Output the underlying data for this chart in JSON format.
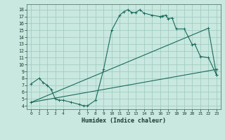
{
  "bg_color": "#c8e8e0",
  "grid_color": "#9dc8bc",
  "line_color": "#1a6b5a",
  "xlabel": "Humidex (Indice chaleur)",
  "xlim": [
    -0.5,
    23.5
  ],
  "ylim": [
    3.5,
    18.8
  ],
  "xticks": [
    0,
    1,
    2,
    3,
    4,
    6,
    7,
    8,
    9,
    10,
    11,
    12,
    13,
    14,
    15,
    16,
    17,
    18,
    19,
    20,
    21,
    22,
    23
  ],
  "yticks": [
    4,
    5,
    6,
    7,
    8,
    9,
    10,
    11,
    12,
    13,
    14,
    15,
    16,
    17,
    18
  ],
  "curve1_x": [
    0,
    1,
    1.5,
    2,
    2.5,
    3,
    3.5,
    4,
    5,
    6,
    6.5,
    7,
    8,
    9,
    10,
    11,
    11.5,
    12,
    12.5,
    13,
    13.5,
    14,
    15,
    16,
    16.3,
    16.7,
    17,
    17.5,
    18,
    19,
    20,
    20.3,
    21,
    22,
    23
  ],
  "curve1_y": [
    7.2,
    8.0,
    7.4,
    7.0,
    6.4,
    5.0,
    4.8,
    4.8,
    4.5,
    4.2,
    4.0,
    4.0,
    4.8,
    9.3,
    15.0,
    17.2,
    17.7,
    18.0,
    17.6,
    17.6,
    18.0,
    17.5,
    17.2,
    17.0,
    17.1,
    17.2,
    16.7,
    16.8,
    15.2,
    15.2,
    12.9,
    13.0,
    11.2,
    11.0,
    8.5
  ],
  "curve2_x": [
    0,
    23
  ],
  "curve2_y": [
    4.5,
    9.3
  ],
  "curve3_x": [
    0,
    22,
    23
  ],
  "curve3_y": [
    4.5,
    15.3,
    8.5
  ],
  "figsize": [
    3.2,
    2.0
  ],
  "dpi": 100
}
